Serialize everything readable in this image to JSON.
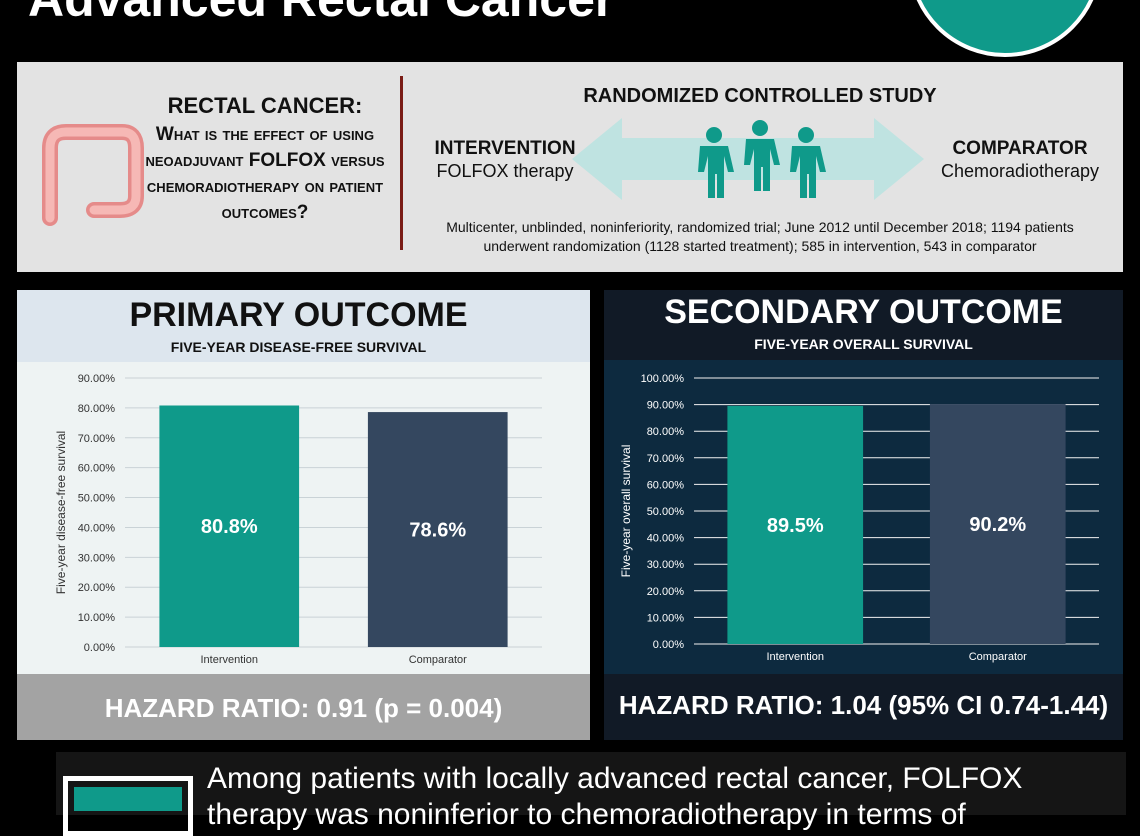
{
  "header": {
    "title": "Advanced Rectal Cancer"
  },
  "question": {
    "title": "RECTAL CANCER:",
    "text": "What is the effect of using neoadjuvant FOLFOX versus chemoradiotherapy on patient outcomes?"
  },
  "study": {
    "title": "RANDOMIZED CONTROLLED STUDY",
    "intervention_label": "INTERVENTION",
    "intervention_sub": "FOLFOX therapy",
    "comparator_label": "COMPARATOR",
    "comparator_sub": "Chemoradiotherapy",
    "description": "Multicenter, unblinded, noninferiority, randomized trial; June 2012 until December 2018; 1194 patients underwent randomization (1128 started treatment); 585 in intervention, 543 in comparator"
  },
  "primary": {
    "title": "PRIMARY OUTCOME",
    "subtitle": "FIVE-YEAR DISEASE-FREE SURVIVAL",
    "hazard_ratio": "HAZARD RATIO: 0.91 (p = 0.004)"
  },
  "secondary": {
    "title": "SECONDARY OUTCOME",
    "subtitle": "FIVE-YEAR OVERALL SURVIVAL",
    "hazard_ratio": "HAZARD RATIO: 1.04 (95% CI 0.74-1.44)"
  },
  "conclusion": {
    "text": "Among patients with locally advanced rectal cancer, FOLFOX therapy was noninferior to chemoradiotherapy in terms of"
  },
  "colors": {
    "intervention": "#0f9a8a",
    "comparator": "#34475f",
    "accent_teal": "#0f9a8a",
    "arrow": "#bfe3e1",
    "divider": "#7a1c16"
  },
  "chart_data": [
    {
      "type": "bar",
      "categories": [
        "Intervention",
        "Comparator"
      ],
      "values": [
        80.8,
        78.6
      ],
      "data_labels": [
        "80.8%",
        "78.6%"
      ],
      "ylabel": "Five-year disease-free survival",
      "ylim": [
        0,
        90
      ],
      "ytick_labels": [
        "0.00%",
        "10.00%",
        "20.00%",
        "30.00%",
        "40.00%",
        "50.00%",
        "60.00%",
        "70.00%",
        "80.00%",
        "90.00%"
      ],
      "grid": true,
      "colors": [
        "#0f9a8a",
        "#34475f"
      ]
    },
    {
      "type": "bar",
      "categories": [
        "Intervention",
        "Comparator"
      ],
      "values": [
        89.5,
        90.2
      ],
      "data_labels": [
        "89.5%",
        "90.2%"
      ],
      "ylabel": "Five-year overall survival",
      "ylim": [
        0,
        100
      ],
      "ytick_labels": [
        "0.00%",
        "10.00%",
        "20.00%",
        "30.00%",
        "40.00%",
        "50.00%",
        "60.00%",
        "70.00%",
        "80.00%",
        "90.00%",
        "100.00%"
      ],
      "grid": true,
      "colors": [
        "#0f9a8a",
        "#34475f"
      ]
    }
  ]
}
